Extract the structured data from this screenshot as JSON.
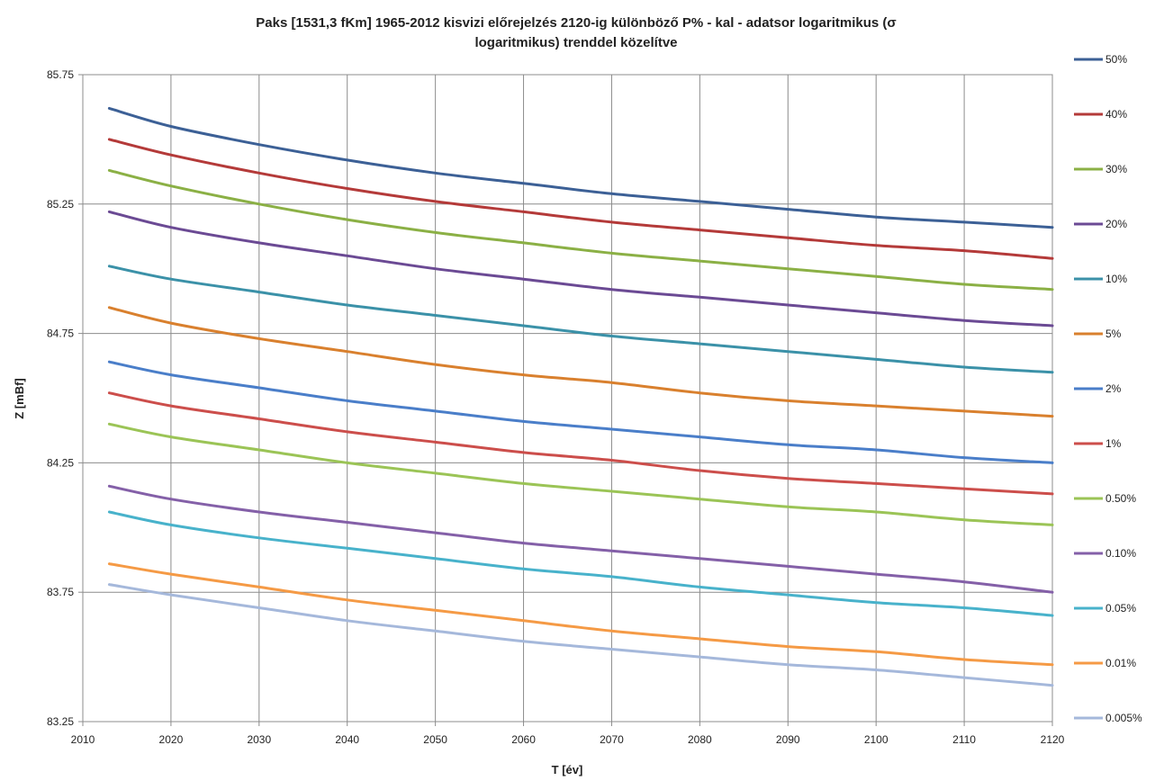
{
  "chart_data": {
    "type": "line",
    "title_lines": [
      "Paks [1531,3 fKm] 1965-2012 kisvizi előrejelzés 2120-ig különböző P% - kal  -  adatsor logaritmikus (σ",
      "logaritmikus) trenddel közelítve"
    ],
    "xlabel": "T [év]",
    "ylabel": "Z [mBf]",
    "xlim": [
      2010,
      2120
    ],
    "ylim": [
      83.25,
      85.75
    ],
    "x_ticks": [
      "2010",
      "2020",
      "2030",
      "2040",
      "2050",
      "2060",
      "2070",
      "2080",
      "2090",
      "2100",
      "2110",
      "2120"
    ],
    "y_ticks": [
      "83.25",
      "83.75",
      "84.25",
      "84.75",
      "85.25",
      "85.75"
    ],
    "grid": true,
    "legend_position": "right",
    "x": [
      2013,
      2020,
      2030,
      2040,
      2050,
      2060,
      2070,
      2080,
      2090,
      2100,
      2110,
      2120
    ],
    "series": [
      {
        "name": "50%",
        "color": "#3c6096",
        "values": [
          85.62,
          85.55,
          85.48,
          85.42,
          85.37,
          85.33,
          85.29,
          85.26,
          85.23,
          85.2,
          85.18,
          85.16
        ]
      },
      {
        "name": "40%",
        "color": "#b43a39",
        "values": [
          85.5,
          85.44,
          85.37,
          85.31,
          85.26,
          85.22,
          85.18,
          85.15,
          85.12,
          85.09,
          85.07,
          85.04
        ]
      },
      {
        "name": "30%",
        "color": "#8bb045",
        "values": [
          85.38,
          85.32,
          85.25,
          85.19,
          85.14,
          85.1,
          85.06,
          85.03,
          85.0,
          84.97,
          84.94,
          84.92
        ]
      },
      {
        "name": "20%",
        "color": "#6b4a94",
        "values": [
          85.22,
          85.16,
          85.1,
          85.05,
          85.0,
          84.96,
          84.92,
          84.89,
          84.86,
          84.83,
          84.8,
          84.78
        ]
      },
      {
        "name": "10%",
        "color": "#3b91a8",
        "values": [
          85.01,
          84.96,
          84.91,
          84.86,
          84.82,
          84.78,
          84.74,
          84.71,
          84.68,
          84.65,
          84.62,
          84.6
        ]
      },
      {
        "name": "5%",
        "color": "#d9802e",
        "values": [
          84.85,
          84.79,
          84.73,
          84.68,
          84.63,
          84.59,
          84.56,
          84.52,
          84.49,
          84.47,
          84.45,
          84.43
        ]
      },
      {
        "name": "2%",
        "color": "#4a7ec9",
        "values": [
          84.64,
          84.59,
          84.54,
          84.49,
          84.45,
          84.41,
          84.38,
          84.35,
          84.32,
          84.3,
          84.27,
          84.25
        ]
      },
      {
        "name": "1%",
        "color": "#cc4e4b",
        "values": [
          84.52,
          84.47,
          84.42,
          84.37,
          84.33,
          84.29,
          84.26,
          84.22,
          84.19,
          84.17,
          84.15,
          84.13
        ]
      },
      {
        "name": "0.50%",
        "color": "#9bc456",
        "values": [
          84.4,
          84.35,
          84.3,
          84.25,
          84.21,
          84.17,
          84.14,
          84.11,
          84.08,
          84.06,
          84.03,
          84.01
        ]
      },
      {
        "name": "0.10%",
        "color": "#8460a8",
        "values": [
          84.16,
          84.11,
          84.06,
          84.02,
          83.98,
          83.94,
          83.91,
          83.88,
          83.85,
          83.82,
          83.79,
          83.75
        ]
      },
      {
        "name": "0.05%",
        "color": "#48b2cb",
        "values": [
          84.06,
          84.01,
          83.96,
          83.92,
          83.88,
          83.84,
          83.81,
          83.77,
          83.74,
          83.71,
          83.69,
          83.66
        ]
      },
      {
        "name": "0.01%",
        "color": "#f59a45",
        "values": [
          83.86,
          83.82,
          83.77,
          83.72,
          83.68,
          83.64,
          83.6,
          83.57,
          83.54,
          83.52,
          83.49,
          83.47
        ]
      },
      {
        "name": "0.005%",
        "color": "#a5b8db",
        "values": [
          83.78,
          83.74,
          83.69,
          83.64,
          83.6,
          83.56,
          83.53,
          83.5,
          83.47,
          83.45,
          83.42,
          83.39
        ]
      }
    ]
  }
}
